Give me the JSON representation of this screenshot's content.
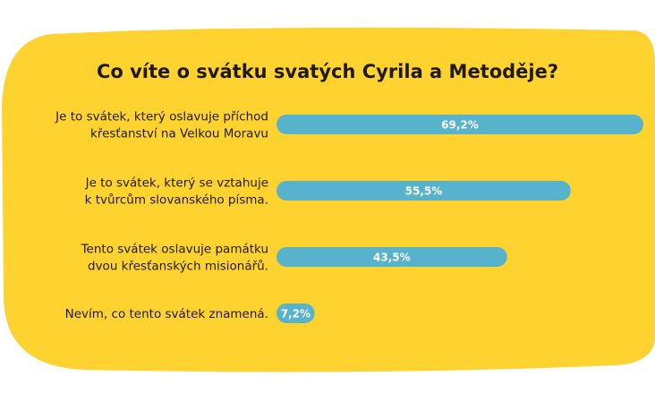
{
  "chart_data": {
    "type": "bar",
    "orientation": "horizontal",
    "title": "Co víte o svátku svatých Cyrila a Metoděje?",
    "categories": [
      [
        "Je to svátek, který oslavuje příchod",
        "křesťanství na Velkou Moravu"
      ],
      [
        "Je to svátek, který se vztahuje",
        "k tvůrcům slovanského písma."
      ],
      [
        "Tento svátek oslavuje památku",
        "dvou křesťanských misionářů."
      ],
      [
        "Nevím, co tento svátek znamená."
      ]
    ],
    "values": [
      69.2,
      55.5,
      43.5,
      7.2
    ],
    "value_labels": [
      "69,2%",
      "55,5%",
      "43,5%",
      "7,2%"
    ],
    "unit": "%",
    "xlim": [
      0,
      69.2
    ],
    "grid": false,
    "legend": "none"
  },
  "colors": {
    "background": "#ffffff",
    "panel": "#fed22f",
    "bar": "#56b3cb",
    "text": "#1f1a17",
    "value_text": "#ffffff"
  }
}
